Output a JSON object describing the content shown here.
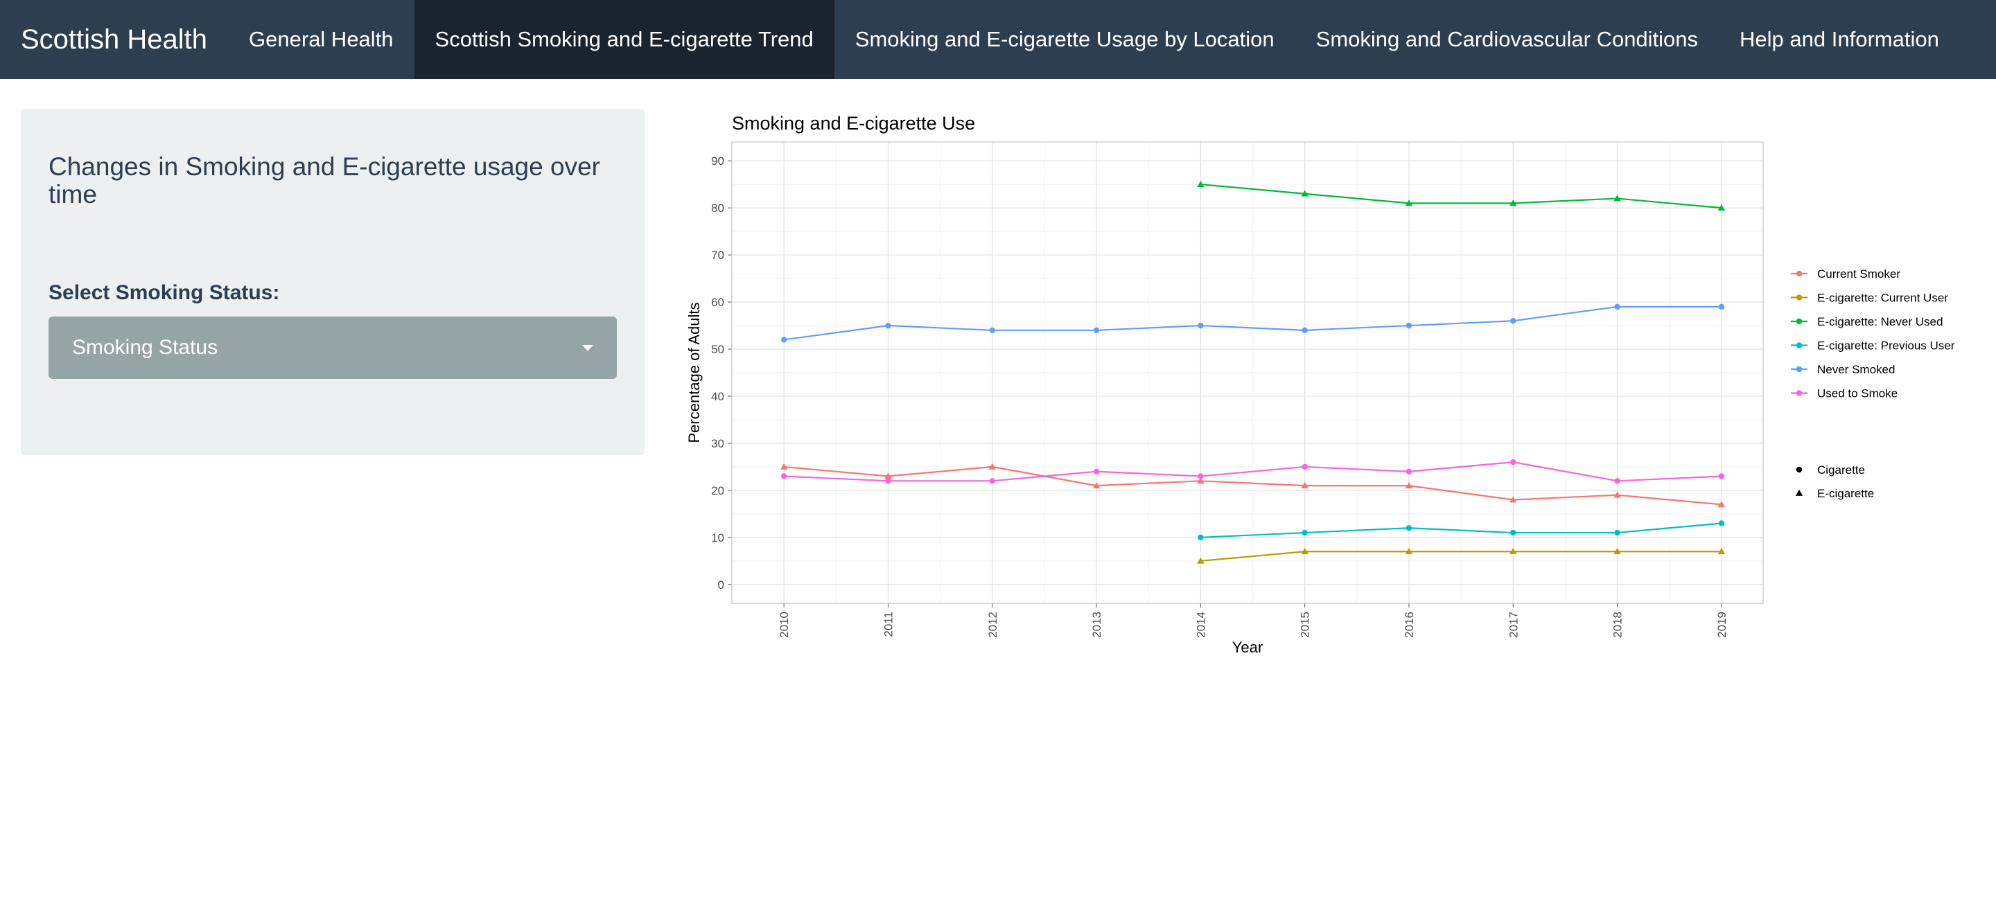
{
  "navbar": {
    "brand": "Scottish Health",
    "tabs": [
      {
        "label": "General Health",
        "active": false
      },
      {
        "label": "Scottish Smoking and E-cigarette Trend",
        "active": true
      },
      {
        "label": "Smoking and E-cigarette Usage by Location",
        "active": false
      },
      {
        "label": "Smoking and Cardiovascular Conditions",
        "active": false
      },
      {
        "label": "Help and Information",
        "active": false
      }
    ]
  },
  "sidebar": {
    "heading": "Changes in Smoking and E-cigarette usage over time",
    "select_label": "Select Smoking Status:",
    "select_value": "Smoking Status"
  },
  "chart_data": {
    "type": "line",
    "title": "Smoking and E-cigarette Use",
    "xlabel": "Year",
    "ylabel": "Percentage of Adults",
    "x": [
      2010,
      2011,
      2012,
      2013,
      2014,
      2015,
      2016,
      2017,
      2018,
      2019
    ],
    "xlim": [
      2009.5,
      2019.4
    ],
    "ylim": [
      -4,
      94
    ],
    "yticks": [
      0,
      10,
      20,
      30,
      40,
      50,
      60,
      70,
      80,
      90
    ],
    "grid": true,
    "legend_position": "right",
    "series": [
      {
        "name": "Current Smoker",
        "color": "#F8766D",
        "shape": "E-cigarette",
        "x": [
          2010,
          2011,
          2012,
          2013,
          2014,
          2015,
          2016,
          2017,
          2018,
          2019
        ],
        "y": [
          25,
          23,
          25,
          21,
          22,
          21,
          21,
          18,
          19,
          17
        ]
      },
      {
        "name": "E-cigarette: Current User",
        "color": "#B79F00",
        "shape": "E-cigarette",
        "x": [
          2014,
          2015,
          2016,
          2017,
          2018,
          2019
        ],
        "y": [
          5,
          7,
          7,
          7,
          7,
          7
        ]
      },
      {
        "name": "E-cigarette: Never Used",
        "color": "#00BA38",
        "shape": "E-cigarette",
        "x": [
          2014,
          2015,
          2016,
          2017,
          2018,
          2019
        ],
        "y": [
          85,
          83,
          81,
          81,
          82,
          80
        ]
      },
      {
        "name": "E-cigarette: Previous User",
        "color": "#00BFC4",
        "shape": "Cigarette",
        "x": [
          2014,
          2015,
          2016,
          2017,
          2018,
          2019
        ],
        "y": [
          10,
          11,
          12,
          11,
          11,
          13
        ]
      },
      {
        "name": "Never Smoked",
        "color": "#619CFF",
        "shape": "Cigarette",
        "x": [
          2010,
          2011,
          2012,
          2013,
          2014,
          2015,
          2016,
          2017,
          2018,
          2019
        ],
        "y": [
          52,
          55,
          54,
          54,
          55,
          54,
          55,
          56,
          59,
          59
        ]
      },
      {
        "name": "Used to Smoke",
        "color": "#F564E3",
        "shape": "Cigarette",
        "x": [
          2010,
          2011,
          2012,
          2013,
          2014,
          2015,
          2016,
          2017,
          2018,
          2019
        ],
        "y": [
          23,
          22,
          22,
          24,
          23,
          25,
          24,
          26,
          22,
          23
        ]
      }
    ],
    "shape_legend": [
      {
        "name": "Cigarette",
        "shape": "circle"
      },
      {
        "name": "E-cigarette",
        "shape": "triangle"
      }
    ]
  }
}
